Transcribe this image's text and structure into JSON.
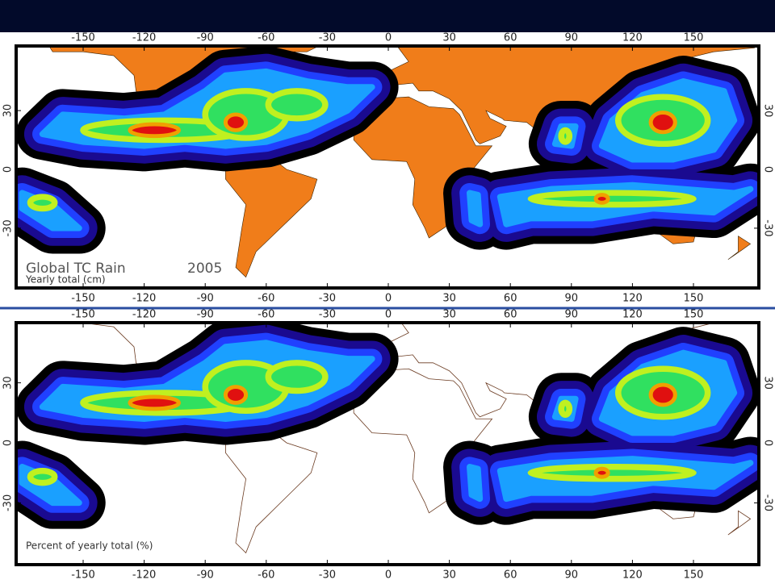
{
  "axes": {
    "lon_ticks": [
      -150,
      -120,
      -90,
      -60,
      -30,
      0,
      30,
      60,
      90,
      120,
      150
    ],
    "lat_ticks": [
      30,
      0,
      -30
    ]
  },
  "panels": [
    {
      "title": "Global TC Rain",
      "year": "2005",
      "caption": "Yearly total (cm)"
    },
    {
      "caption": "Percent of yearly total (%)"
    }
  ]
}
